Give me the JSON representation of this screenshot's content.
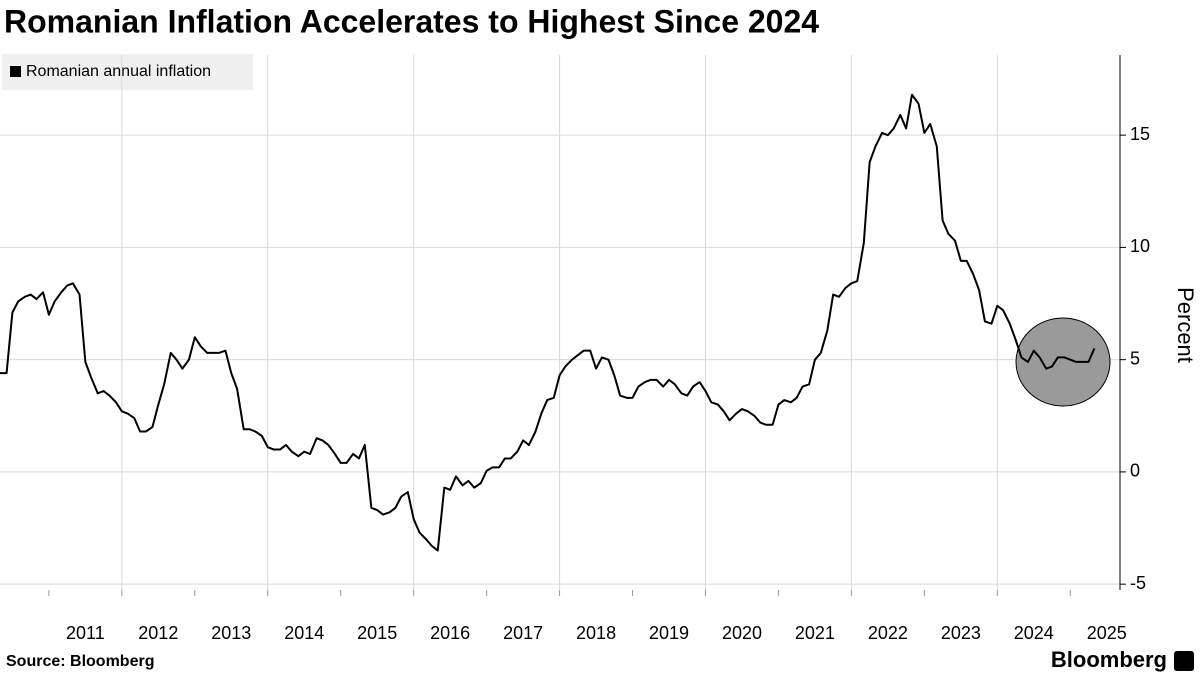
{
  "chart_data": {
    "type": "line",
    "title": "Romanian Inflation Accelerates to Highest Since 2024",
    "y_label": "Percent",
    "source": "Source: Bloomberg",
    "brand": "Bloomberg",
    "series": [
      {
        "name": "Romanian annual inflation",
        "color": "#000000",
        "values": [
          4.4,
          4.4,
          7.1,
          7.6,
          7.8,
          7.9,
          7.7,
          8.0,
          7.0,
          7.6,
          8.0,
          8.3,
          8.4,
          7.9,
          4.9,
          4.2,
          3.5,
          3.6,
          3.4,
          3.1,
          2.7,
          2.6,
          2.4,
          1.8,
          1.8,
          2.0,
          3.0,
          3.9,
          5.3,
          5.0,
          4.6,
          5.0,
          6.0,
          5.6,
          5.3,
          5.3,
          5.3,
          5.4,
          4.4,
          3.7,
          1.9,
          1.9,
          1.8,
          1.6,
          1.1,
          1.0,
          1.0,
          1.2,
          0.9,
          0.7,
          0.9,
          0.8,
          1.5,
          1.4,
          1.2,
          0.8,
          0.4,
          0.4,
          0.8,
          0.6,
          1.2,
          -1.6,
          -1.7,
          -1.9,
          -1.8,
          -1.6,
          -1.1,
          -0.9,
          -2.1,
          -2.7,
          -3.0,
          -3.3,
          -3.5,
          -0.7,
          -0.8,
          -0.2,
          -0.6,
          -0.4,
          -0.7,
          -0.5,
          0.05,
          0.2,
          0.2,
          0.6,
          0.6,
          0.9,
          1.4,
          1.2,
          1.8,
          2.6,
          3.2,
          3.3,
          4.3,
          4.7,
          5.0,
          5.2,
          5.4,
          5.4,
          4.6,
          5.1,
          5.0,
          4.3,
          3.4,
          3.3,
          3.3,
          3.8,
          4.0,
          4.1,
          4.1,
          3.8,
          4.1,
          3.9,
          3.5,
          3.4,
          3.8,
          4.0,
          3.6,
          3.1,
          3.0,
          2.7,
          2.3,
          2.6,
          2.8,
          2.7,
          2.5,
          2.2,
          2.1,
          2.1,
          3.0,
          3.2,
          3.1,
          3.3,
          3.8,
          3.9,
          5.0,
          5.3,
          6.3,
          7.9,
          7.8,
          8.2,
          8.4,
          8.5,
          10.2,
          13.8,
          14.5,
          15.1,
          15.0,
          15.3,
          15.9,
          15.3,
          16.8,
          16.4,
          15.1,
          15.5,
          14.5,
          11.2,
          10.6,
          10.3,
          9.4,
          9.4,
          8.8,
          8.1,
          6.7,
          6.6,
          7.4,
          7.2,
          6.6,
          5.9,
          5.1,
          4.9,
          5.4,
          5.1,
          4.6,
          4.7,
          5.1,
          5.1,
          5.0,
          4.9,
          4.9,
          4.9,
          5.5
        ]
      }
    ],
    "x": [
      2010.33,
      2010.42,
      2010.5,
      2010.58,
      2010.67,
      2010.75,
      2010.83,
      2010.92,
      2011,
      2011.08,
      2011.17,
      2011.25,
      2011.33,
      2011.42,
      2011.5,
      2011.58,
      2011.67,
      2011.75,
      2011.83,
      2011.92,
      2012,
      2012.08,
      2012.17,
      2012.25,
      2012.33,
      2012.42,
      2012.5,
      2012.58,
      2012.67,
      2012.75,
      2012.83,
      2012.92,
      2013,
      2013.08,
      2013.17,
      2013.25,
      2013.33,
      2013.42,
      2013.5,
      2013.58,
      2013.67,
      2013.75,
      2013.83,
      2013.92,
      2014,
      2014.08,
      2014.17,
      2014.25,
      2014.33,
      2014.42,
      2014.5,
      2014.58,
      2014.67,
      2014.75,
      2014.83,
      2014.92,
      2015,
      2015.08,
      2015.17,
      2015.25,
      2015.33,
      2015.42,
      2015.5,
      2015.58,
      2015.67,
      2015.75,
      2015.83,
      2015.92,
      2016,
      2016.08,
      2016.17,
      2016.25,
      2016.33,
      2016.42,
      2016.5,
      2016.58,
      2016.67,
      2016.75,
      2016.83,
      2016.92,
      2017,
      2017.08,
      2017.17,
      2017.25,
      2017.33,
      2017.42,
      2017.5,
      2017.58,
      2017.67,
      2017.75,
      2017.83,
      2017.92,
      2018,
      2018.08,
      2018.17,
      2018.25,
      2018.33,
      2018.42,
      2018.5,
      2018.58,
      2018.67,
      2018.75,
      2018.83,
      2018.92,
      2019,
      2019.08,
      2019.17,
      2019.25,
      2019.33,
      2019.42,
      2019.5,
      2019.58,
      2019.67,
      2019.75,
      2019.83,
      2019.92,
      2020,
      2020.08,
      2020.17,
      2020.25,
      2020.33,
      2020.42,
      2020.5,
      2020.58,
      2020.67,
      2020.75,
      2020.83,
      2020.92,
      2021,
      2021.08,
      2021.17,
      2021.25,
      2021.33,
      2021.42,
      2021.5,
      2021.58,
      2021.67,
      2021.75,
      2021.83,
      2021.92,
      2022,
      2022.08,
      2022.17,
      2022.25,
      2022.33,
      2022.42,
      2022.5,
      2022.58,
      2022.67,
      2022.75,
      2022.83,
      2022.92,
      2023,
      2023.08,
      2023.17,
      2023.25,
      2023.33,
      2023.42,
      2023.5,
      2023.58,
      2023.67,
      2023.75,
      2023.83,
      2023.92,
      2024,
      2024.08,
      2024.17,
      2024.25,
      2024.33,
      2024.42,
      2024.5,
      2024.58,
      2024.67,
      2024.75,
      2024.83,
      2024.92,
      2025,
      2025.08,
      2025.17,
      2025.25,
      2025.33
    ],
    "xlim": [
      2010.33,
      2025.75
    ],
    "xticks": [
      2011,
      2012,
      2013,
      2014,
      2015,
      2016,
      2017,
      2018,
      2019,
      2020,
      2021,
      2022,
      2023,
      2024,
      2025
    ],
    "ylim": [
      -5.26,
      18.57
    ],
    "yticks": [
      -5,
      0,
      5,
      10,
      15
    ],
    "grid": true
  }
}
